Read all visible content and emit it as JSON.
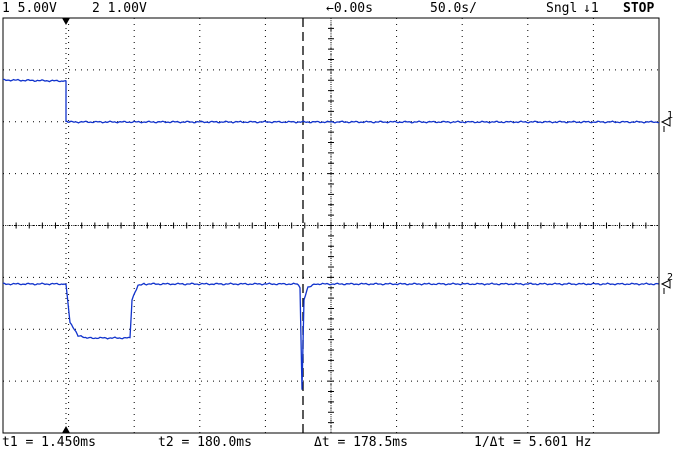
{
  "status": {
    "ch1_label": "1 5.00V",
    "ch2_label": "2 1.00V",
    "trigger_delay": "←0.00s",
    "timebase": "50.0s/",
    "mode": "Sngl",
    "trigger_source": "↓1",
    "run_state": "STOP"
  },
  "channels": [
    {
      "id": "1",
      "marker": "1",
      "color": "#1133cc"
    },
    {
      "id": "2",
      "marker": "2",
      "color": "#1133cc"
    }
  ],
  "measurements": {
    "t1": "t1 = 1.450ms",
    "t2": "t2 = 180.0ms",
    "dt": "Δt = 178.5ms",
    "inv_dt": "1/Δt = 5.601 Hz"
  },
  "icons": [
    "trigger-marker-icon",
    "ground-marker-icon"
  ],
  "colors": {
    "trace": "#1133cc",
    "grid": "#000000",
    "background": "#ffffff"
  }
}
